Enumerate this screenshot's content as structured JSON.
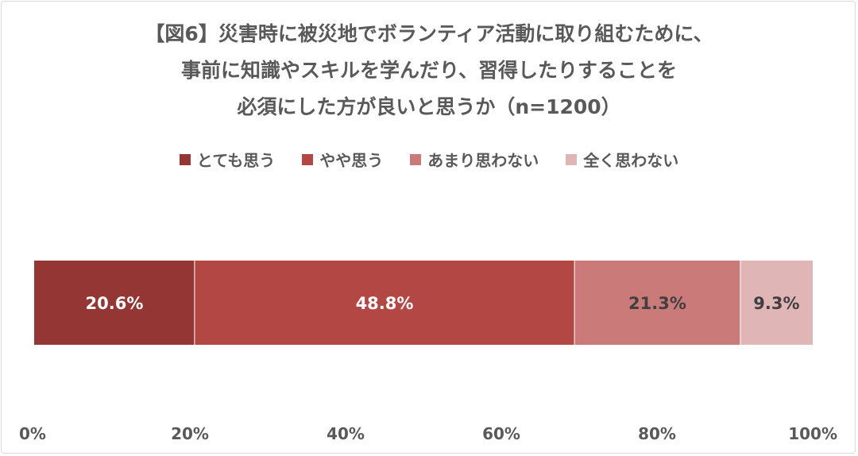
{
  "chart_data": {
    "type": "bar",
    "orientation": "horizontal-stacked-100",
    "title_lines": [
      "【図6】災害時に被災地でボランティア活動に取り組むために、",
      "事前に知識やスキルを学んだり、習得したりすることを",
      "必須にした方が良いと思うか（n=1200）"
    ],
    "categories": [
      ""
    ],
    "series": [
      {
        "name": "とても思う",
        "values": [
          20.6
        ],
        "label": "20.6%",
        "color": "#943634",
        "label_color": "#ffffff"
      },
      {
        "name": "やや思う",
        "values": [
          48.8
        ],
        "label": "48.8%",
        "color": "#b34744",
        "label_color": "#ffffff"
      },
      {
        "name": "あまり思わない",
        "values": [
          21.3
        ],
        "label": "21.3%",
        "color": "#c97a79",
        "label_color": "#404040"
      },
      {
        "name": "全く思わない",
        "values": [
          9.3
        ],
        "label": "9.3%",
        "color": "#e0b5b5",
        "label_color": "#404040"
      }
    ],
    "xlim": [
      0,
      100
    ],
    "x_ticks": [
      "0%",
      "20%",
      "40%",
      "60%",
      "80%",
      "100%"
    ],
    "legend_position": "top",
    "grid": false
  }
}
